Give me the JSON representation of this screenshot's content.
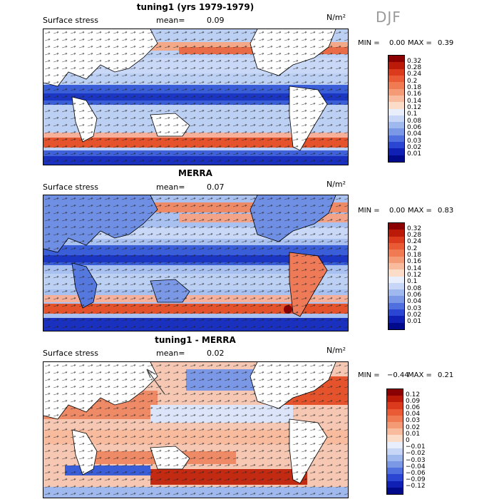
{
  "season": "DJF",
  "panels": [
    {
      "title": "tuning1 (yrs 1979-1979)",
      "field_label": "Surface stress",
      "mean_label": "mean=",
      "mean_value": "0.09",
      "units": "N/m²",
      "min_label": "MIN =",
      "min_value": "0.00",
      "max_label": "MAX =",
      "max_value": "0.39",
      "colorbar": {
        "levels": [
          "0.32",
          "0.28",
          "0.24",
          "0.2",
          "0.18",
          "0.16",
          "0.14",
          "0.12",
          "0.1",
          "0.08",
          "0.06",
          "0.04",
          "0.03",
          "0.02",
          "0.01"
        ],
        "colors": [
          "#8b0000",
          "#bb1a08",
          "#dc3a1c",
          "#ea5a34",
          "#f07a52",
          "#f49a74",
          "#f8bb9e",
          "#fbdcc8",
          "#e8eefb",
          "#c7d6f6",
          "#9fb9ef",
          "#7a98e6",
          "#4f70de",
          "#2a46d2",
          "#1020b4",
          "#000a8a"
        ]
      }
    },
    {
      "title": "MERRA",
      "field_label": "Surface stress",
      "mean_label": "mean=",
      "mean_value": "0.07",
      "units": "N/m²",
      "min_label": "MIN =",
      "min_value": "0.00",
      "max_label": "MAX =",
      "max_value": "0.83",
      "colorbar": {
        "levels": [
          "0.32",
          "0.28",
          "0.24",
          "0.2",
          "0.18",
          "0.16",
          "0.14",
          "0.12",
          "0.1",
          "0.08",
          "0.06",
          "0.04",
          "0.03",
          "0.02",
          "0.01"
        ],
        "colors": [
          "#8b0000",
          "#bb1a08",
          "#dc3a1c",
          "#ea5a34",
          "#f07a52",
          "#f49a74",
          "#f8bb9e",
          "#fbdcc8",
          "#e8eefb",
          "#c7d6f6",
          "#9fb9ef",
          "#7a98e6",
          "#4f70de",
          "#2a46d2",
          "#1020b4",
          "#000a8a"
        ]
      }
    },
    {
      "title": "tuning1 - MERRA",
      "field_label": "Surface stress",
      "mean_label": "mean=",
      "mean_value": "0.02",
      "units": "N/m²",
      "min_label": "MIN =",
      "min_value": "−0.44",
      "max_label": "MAX =",
      "max_value": "0.21",
      "colorbar": {
        "levels": [
          "0.12",
          "0.09",
          "0.06",
          "0.04",
          "0.03",
          "0.02",
          "0.01",
          "0",
          "−0.01",
          "−0.02",
          "−0.03",
          "−0.04",
          "−0.06",
          "−0.09",
          "−0.12"
        ],
        "colors": [
          "#8b0000",
          "#bb1a08",
          "#dc3a1c",
          "#ea5a34",
          "#f07a52",
          "#f49a74",
          "#f8bb9e",
          "#fbdcc8",
          "#e8eefb",
          "#c7d6f6",
          "#9fb9ef",
          "#7a98e6",
          "#4f70de",
          "#2a46d2",
          "#1020b4",
          "#000a8a"
        ]
      }
    }
  ],
  "chart_data": [
    {
      "type": "heatmap",
      "title": "tuning1 (yrs 1979-1979)",
      "variable": "Surface stress",
      "units": "N/m²",
      "season": "DJF",
      "mean": 0.09,
      "min": 0.0,
      "max": 0.39,
      "contour_levels": [
        0.01,
        0.02,
        0.03,
        0.04,
        0.06,
        0.08,
        0.1,
        0.12,
        0.14,
        0.16,
        0.18,
        0.2,
        0.24,
        0.28,
        0.32
      ]
    },
    {
      "type": "heatmap",
      "title": "MERRA",
      "variable": "Surface stress",
      "units": "N/m²",
      "season": "DJF",
      "mean": 0.07,
      "min": 0.0,
      "max": 0.83,
      "contour_levels": [
        0.01,
        0.02,
        0.03,
        0.04,
        0.06,
        0.08,
        0.1,
        0.12,
        0.14,
        0.16,
        0.18,
        0.2,
        0.24,
        0.28,
        0.32
      ]
    },
    {
      "type": "heatmap",
      "title": "tuning1 - MERRA",
      "variable": "Surface stress",
      "units": "N/m²",
      "season": "DJF",
      "mean": 0.02,
      "min": -0.44,
      "max": 0.21,
      "contour_levels": [
        -0.12,
        -0.09,
        -0.06,
        -0.04,
        -0.03,
        -0.02,
        -0.01,
        0,
        0.01,
        0.02,
        0.03,
        0.04,
        0.06,
        0.09,
        0.12
      ]
    }
  ]
}
